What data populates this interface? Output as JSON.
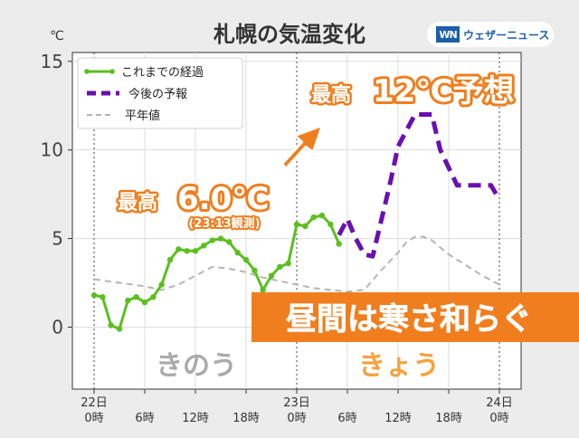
{
  "chart_data": {
    "type": "line",
    "title": "札幌の気温変化",
    "unit_label": "℃",
    "ylim": [
      -3.5,
      15.5
    ],
    "yticks": [
      0,
      5,
      10,
      15
    ],
    "xlim": [
      0,
      48
    ],
    "xticks": [
      {
        "t": 0,
        "top": "22日",
        "bottom": "0時"
      },
      {
        "t": 6,
        "top": "",
        "bottom": "6時"
      },
      {
        "t": 12,
        "top": "",
        "bottom": "12時"
      },
      {
        "t": 18,
        "top": "",
        "bottom": "18時"
      },
      {
        "t": 24,
        "top": "23日",
        "bottom": "0時"
      },
      {
        "t": 30,
        "top": "",
        "bottom": "6時"
      },
      {
        "t": 36,
        "top": "",
        "bottom": "12時"
      },
      {
        "t": 42,
        "top": "",
        "bottom": "18時"
      },
      {
        "t": 48,
        "top": "24日",
        "bottom": "0時"
      }
    ],
    "day_dividers": [
      0,
      24,
      48
    ],
    "grid": true,
    "legend_position": "top-left",
    "series": [
      {
        "name": "これまでの経過",
        "style": "solid-markers",
        "color": "#5bbf1f",
        "points": [
          [
            0,
            1.8
          ],
          [
            1,
            1.7
          ],
          [
            2,
            0.1
          ],
          [
            3,
            -0.1
          ],
          [
            4,
            1.5
          ],
          [
            5,
            1.7
          ],
          [
            6,
            1.4
          ],
          [
            7,
            1.7
          ],
          [
            8,
            2.4
          ],
          [
            9,
            3.8
          ],
          [
            10,
            4.4
          ],
          [
            11,
            4.3
          ],
          [
            12,
            4.3
          ],
          [
            13,
            4.6
          ],
          [
            14,
            4.9
          ],
          [
            15,
            5.0
          ],
          [
            16,
            4.8
          ],
          [
            17,
            4.2
          ],
          [
            18,
            3.8
          ],
          [
            19,
            3.2
          ],
          [
            20,
            2.1
          ],
          [
            21,
            2.9
          ],
          [
            22,
            3.4
          ],
          [
            23,
            3.6
          ],
          [
            24,
            5.8
          ],
          [
            25,
            5.7
          ],
          [
            26,
            6.2
          ],
          [
            27,
            6.3
          ],
          [
            28,
            5.8
          ],
          [
            29,
            4.7
          ]
        ]
      },
      {
        "name": "今後の予報",
        "style": "dashed-thick",
        "color": "#6a0fb0",
        "points": [
          [
            29,
            5.2
          ],
          [
            30,
            6.1
          ],
          [
            31,
            5.0
          ],
          [
            32,
            4.1
          ],
          [
            33,
            4.0
          ],
          [
            34,
            6.0
          ],
          [
            35,
            8.0
          ],
          [
            36,
            10.2
          ],
          [
            37,
            11.1
          ],
          [
            38,
            12.0
          ],
          [
            39,
            12.0
          ],
          [
            40,
            12.0
          ],
          [
            41,
            10.0
          ],
          [
            42,
            9.0
          ],
          [
            43,
            8.0
          ],
          [
            44,
            8.0
          ],
          [
            45,
            8.0
          ],
          [
            46,
            8.0
          ],
          [
            47,
            8.0
          ],
          [
            48,
            7.2
          ]
        ]
      },
      {
        "name": "平年値",
        "style": "dashed-thin",
        "color": "#b5b5b5",
        "points": [
          [
            0,
            2.7
          ],
          [
            3,
            2.5
          ],
          [
            6,
            2.3
          ],
          [
            8,
            2.1
          ],
          [
            10,
            2.4
          ],
          [
            12,
            2.9
          ],
          [
            14,
            3.4
          ],
          [
            16,
            3.3
          ],
          [
            18,
            3.1
          ],
          [
            20,
            2.8
          ],
          [
            22,
            2.6
          ],
          [
            24,
            2.4
          ],
          [
            26,
            2.2
          ],
          [
            28,
            2.1
          ],
          [
            30,
            2.0
          ],
          [
            32,
            2.1
          ],
          [
            34,
            3.2
          ],
          [
            36,
            4.2
          ],
          [
            37,
            4.8
          ],
          [
            38,
            5.1
          ],
          [
            39,
            5.1
          ],
          [
            40,
            4.9
          ],
          [
            42,
            4.1
          ],
          [
            44,
            3.5
          ],
          [
            46,
            2.9
          ],
          [
            48,
            2.4
          ]
        ]
      }
    ],
    "annotations": {
      "yesterday_max_label": "最高",
      "yesterday_max_value": "6.0℃",
      "yesterday_max_note": "(23:13観測)",
      "today_max_label": "最高",
      "today_max_value": "12℃予想",
      "headline": "昼間は寒さ和らぐ",
      "yesterday_label": "きのう",
      "today_label": "きょう"
    }
  },
  "logo": {
    "mark": "WN",
    "text": "ウェザーニュース"
  }
}
